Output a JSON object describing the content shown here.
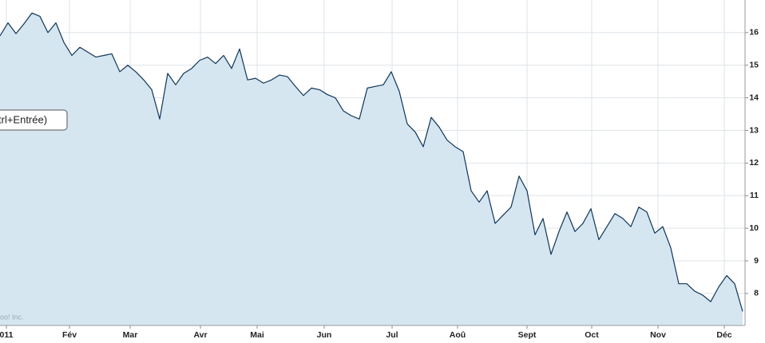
{
  "chart_data": {
    "type": "area",
    "values": [
      15.9,
      16.3,
      15.97,
      16.27,
      16.6,
      16.5,
      16.0,
      16.3,
      15.7,
      15.3,
      15.55,
      15.4,
      15.25,
      15.3,
      15.35,
      14.8,
      15.0,
      14.8,
      14.55,
      14.25,
      13.35,
      14.75,
      14.4,
      14.75,
      14.9,
      15.15,
      15.25,
      15.05,
      15.3,
      14.9,
      15.5,
      14.55,
      14.6,
      14.45,
      14.55,
      14.7,
      14.65,
      14.35,
      14.07,
      14.3,
      14.25,
      14.1,
      14.0,
      13.6,
      13.45,
      13.35,
      14.3,
      14.35,
      14.4,
      14.8,
      14.2,
      13.2,
      12.95,
      12.5,
      13.4,
      13.1,
      12.7,
      12.5,
      12.35,
      11.15,
      10.8,
      11.15,
      10.15,
      10.4,
      10.65,
      11.6,
      11.15,
      9.8,
      10.3,
      9.2,
      9.9,
      10.5,
      9.9,
      10.15,
      10.6,
      9.65,
      10.05,
      10.45,
      10.3,
      10.05,
      10.65,
      10.5,
      9.85,
      10.05,
      9.4,
      8.3,
      8.3,
      8.07,
      7.95,
      7.75,
      8.2,
      8.55,
      8.3,
      7.45
    ],
    "xlim": [
      0,
      93
    ],
    "xticks": [
      {
        "value": 0.8,
        "label": "011"
      },
      {
        "value": 8.7,
        "label": "Fév"
      },
      {
        "value": 16.3,
        "label": "Mar"
      },
      {
        "value": 25.1,
        "label": "Avr"
      },
      {
        "value": 32.2,
        "label": "Mai"
      },
      {
        "value": 40.6,
        "label": "Jun"
      },
      {
        "value": 49.1,
        "label": "Jul"
      },
      {
        "value": 57.3,
        "label": "Aoû"
      },
      {
        "value": 66,
        "label": "Sept"
      },
      {
        "value": 74.1,
        "label": "Oct"
      },
      {
        "value": 82.4,
        "label": "Nov"
      },
      {
        "value": 90.7,
        "label": "Déc"
      }
    ],
    "ylim": [
      7.02,
      17.0
    ],
    "yticks": [
      8,
      9,
      10,
      11,
      12,
      13,
      14,
      15,
      16
    ],
    "grid": true,
    "color": "#0f3556",
    "fill": "#d5e6f1",
    "tooltip": "trl+Entrée)",
    "watermark": "oo! Inc."
  }
}
